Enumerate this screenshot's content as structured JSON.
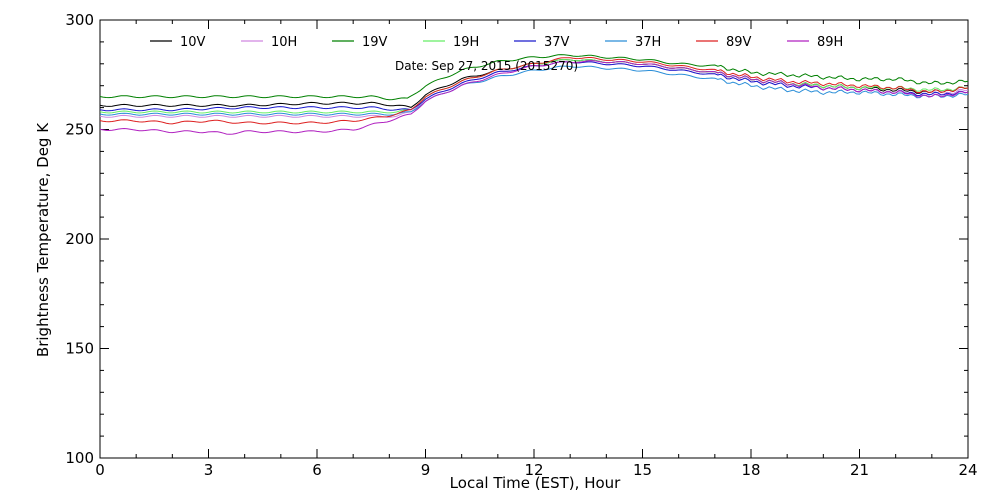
{
  "chart_data": {
    "type": "line",
    "title": "",
    "annotation": "Date: Sep 27, 2015 (2015270)",
    "xlabel": "Local Time (EST), Hour",
    "ylabel": "Brightness Temperature, Deg K",
    "xlim": [
      0,
      24
    ],
    "ylim": [
      100,
      300
    ],
    "xticks": [
      0,
      3,
      6,
      9,
      12,
      15,
      18,
      21,
      24
    ],
    "yticks": [
      100,
      150,
      200,
      250,
      300
    ],
    "grid": false,
    "legend_position": "top",
    "series": [
      {
        "name": "10V",
        "color": "#000000",
        "points": [
          [
            0,
            261
          ],
          [
            2,
            261
          ],
          [
            4,
            261
          ],
          [
            6,
            262
          ],
          [
            7.5,
            262
          ],
          [
            8.2,
            261
          ],
          [
            8.6,
            260
          ],
          [
            9,
            266
          ],
          [
            10,
            273
          ],
          [
            11,
            277
          ],
          [
            12,
            280
          ],
          [
            13,
            282
          ],
          [
            14,
            281
          ],
          [
            15,
            280
          ],
          [
            16,
            278
          ],
          [
            17,
            276
          ],
          [
            18,
            273
          ],
          [
            19,
            271
          ],
          [
            20,
            270
          ],
          [
            21,
            269
          ],
          [
            22,
            268
          ],
          [
            23,
            267
          ],
          [
            24,
            269
          ]
        ]
      },
      {
        "name": "10H",
        "color": "#d088e0",
        "points": [
          [
            0,
            256
          ],
          [
            2,
            256
          ],
          [
            4,
            256
          ],
          [
            6,
            256
          ],
          [
            7.5,
            256
          ],
          [
            8.2,
            256
          ],
          [
            8.6,
            258
          ],
          [
            9,
            264
          ],
          [
            10,
            271
          ],
          [
            11,
            276
          ],
          [
            12,
            279
          ],
          [
            13,
            281
          ],
          [
            14,
            280
          ],
          [
            15,
            279
          ],
          [
            16,
            277
          ],
          [
            17,
            275
          ],
          [
            18,
            272
          ],
          [
            19,
            270
          ],
          [
            20,
            269
          ],
          [
            21,
            268
          ],
          [
            22,
            267
          ],
          [
            23,
            266
          ],
          [
            24,
            268
          ]
        ]
      },
      {
        "name": "19V",
        "color": "#008000",
        "points": [
          [
            0,
            265
          ],
          [
            2,
            265
          ],
          [
            4,
            265
          ],
          [
            6,
            265
          ],
          [
            7.5,
            265
          ],
          [
            8,
            264
          ],
          [
            8.5,
            264
          ],
          [
            9,
            270
          ],
          [
            10,
            277
          ],
          [
            11,
            281
          ],
          [
            12,
            283
          ],
          [
            13,
            284
          ],
          [
            14,
            283
          ],
          [
            15,
            282
          ],
          [
            16,
            280
          ],
          [
            17,
            279
          ],
          [
            18,
            276
          ],
          [
            19,
            275
          ],
          [
            20,
            274
          ],
          [
            21,
            273
          ],
          [
            22,
            273
          ],
          [
            23,
            271
          ],
          [
            24,
            272
          ]
        ]
      },
      {
        "name": "19H",
        "color": "#66ee66",
        "points": [
          [
            0,
            258
          ],
          [
            2,
            258
          ],
          [
            4,
            258
          ],
          [
            6,
            258
          ],
          [
            7.5,
            258
          ],
          [
            8.2,
            258
          ],
          [
            8.6,
            259
          ],
          [
            9,
            265
          ],
          [
            10,
            272
          ],
          [
            11,
            277
          ],
          [
            12,
            280
          ],
          [
            13,
            282
          ],
          [
            14,
            281
          ],
          [
            15,
            280
          ],
          [
            16,
            278
          ],
          [
            17,
            276
          ],
          [
            18,
            273
          ],
          [
            19,
            271
          ],
          [
            20,
            270
          ],
          [
            21,
            269
          ],
          [
            22,
            269
          ],
          [
            23,
            268
          ],
          [
            24,
            269
          ]
        ]
      },
      {
        "name": "37V",
        "color": "#1a1acc",
        "points": [
          [
            0,
            259
          ],
          [
            2,
            259
          ],
          [
            4,
            260
          ],
          [
            6,
            260
          ],
          [
            7.5,
            260
          ],
          [
            8.2,
            259
          ],
          [
            8.6,
            259
          ],
          [
            9,
            264
          ],
          [
            10,
            271
          ],
          [
            11,
            276
          ],
          [
            12,
            279
          ],
          [
            13,
            281
          ],
          [
            14,
            280
          ],
          [
            15,
            279
          ],
          [
            16,
            277
          ],
          [
            17,
            275
          ],
          [
            18,
            272
          ],
          [
            19,
            270
          ],
          [
            20,
            269
          ],
          [
            21,
            268
          ],
          [
            22,
            267
          ],
          [
            23,
            266
          ],
          [
            24,
            267
          ]
        ]
      },
      {
        "name": "37H",
        "color": "#2a8ed8",
        "points": [
          [
            0,
            257
          ],
          [
            2,
            257
          ],
          [
            4,
            257
          ],
          [
            6,
            257
          ],
          [
            7.5,
            257
          ],
          [
            8.2,
            257
          ],
          [
            8.6,
            258
          ],
          [
            9,
            263
          ],
          [
            10,
            270
          ],
          [
            11,
            274
          ],
          [
            12,
            277
          ],
          [
            13,
            279
          ],
          [
            14,
            278
          ],
          [
            15,
            277
          ],
          [
            16,
            275
          ],
          [
            17,
            273
          ],
          [
            18,
            270
          ],
          [
            19,
            268
          ],
          [
            20,
            267
          ],
          [
            21,
            267
          ],
          [
            22,
            266
          ],
          [
            23,
            265
          ],
          [
            24,
            266
          ]
        ]
      },
      {
        "name": "89V",
        "color": "#dd2020",
        "points": [
          [
            0,
            254
          ],
          [
            1,
            254
          ],
          [
            2,
            253
          ],
          [
            3,
            254
          ],
          [
            4,
            253
          ],
          [
            5,
            253
          ],
          [
            6,
            253
          ],
          [
            7,
            254
          ],
          [
            7.5,
            255
          ],
          [
            8.2,
            257
          ],
          [
            8.6,
            259
          ],
          [
            9,
            265
          ],
          [
            10,
            272
          ],
          [
            11,
            277
          ],
          [
            12,
            280
          ],
          [
            13,
            283
          ],
          [
            14,
            282
          ],
          [
            15,
            281
          ],
          [
            16,
            279
          ],
          [
            17,
            277
          ],
          [
            18,
            274
          ],
          [
            19,
            272
          ],
          [
            20,
            271
          ],
          [
            21,
            270
          ],
          [
            22,
            269
          ],
          [
            23,
            267
          ],
          [
            24,
            269
          ]
        ]
      },
      {
        "name": "89H",
        "color": "#b020c0",
        "points": [
          [
            0,
            250
          ],
          [
            1,
            250
          ],
          [
            2,
            249
          ],
          [
            3,
            249
          ],
          [
            3.5,
            248
          ],
          [
            4,
            249
          ],
          [
            5,
            249
          ],
          [
            6,
            249
          ],
          [
            7,
            250
          ],
          [
            7.5,
            252
          ],
          [
            8.2,
            255
          ],
          [
            8.6,
            257
          ],
          [
            9,
            263
          ],
          [
            10,
            270
          ],
          [
            11,
            275
          ],
          [
            12,
            279
          ],
          [
            13,
            281
          ],
          [
            14,
            281
          ],
          [
            15,
            280
          ],
          [
            16,
            278
          ],
          [
            17,
            276
          ],
          [
            18,
            273
          ],
          [
            19,
            271
          ],
          [
            20,
            269
          ],
          [
            21,
            268
          ],
          [
            22,
            267
          ],
          [
            23,
            265
          ],
          [
            24,
            267
          ]
        ]
      }
    ]
  }
}
